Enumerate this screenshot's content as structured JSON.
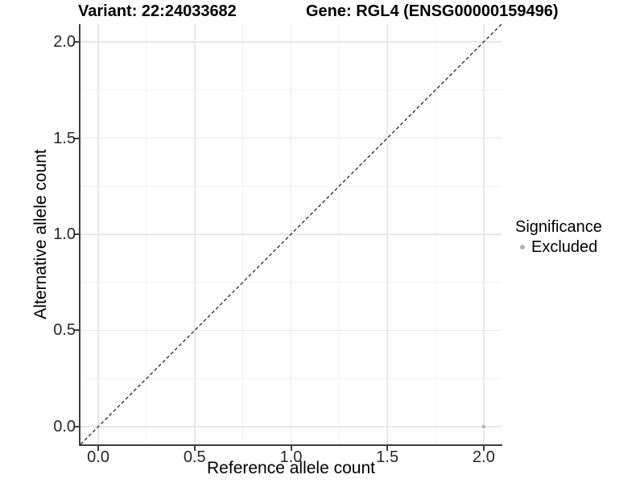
{
  "chart_data": {
    "type": "scatter",
    "title_left": "Variant: 22:24033682",
    "title_right": "Gene: RGL4 (ENSG00000159496)",
    "xlabel": "Reference allele count",
    "ylabel": "Alternative allele count",
    "xlim": [
      -0.0922,
      2.0922
    ],
    "ylim": [
      -0.0922,
      2.0922
    ],
    "x_ticks": [
      0.0,
      0.5,
      1.0,
      1.5,
      2.0
    ],
    "y_ticks": [
      0.0,
      0.5,
      1.0,
      1.5,
      2.0
    ],
    "x_minor_ticks": [
      0.25,
      0.75,
      1.25,
      1.75
    ],
    "y_minor_ticks": [
      0.25,
      0.75,
      1.25,
      1.75
    ],
    "tick_decimals": 1,
    "grid": {
      "major": true,
      "minor": true
    },
    "reference_line": {
      "slope": 1,
      "intercept": 0,
      "style": "dashed",
      "color": "#262626"
    },
    "points": [
      {
        "x": 2.0,
        "y": 0.0,
        "group": "Excluded",
        "color": "#b3b3b3",
        "radius": 2.2
      }
    ],
    "legend": {
      "title": "Significance",
      "position": "right",
      "items": [
        {
          "label": "Excluded",
          "color": "#b3b3b3",
          "shape": "circle"
        }
      ]
    },
    "colors": {
      "background": "#ffffff",
      "grid_major": "#e8e8e8",
      "grid_minor": "#f4f4f4",
      "axis_line": "#3d3d3d",
      "text": "#000000",
      "tick_text": "#262626"
    }
  }
}
